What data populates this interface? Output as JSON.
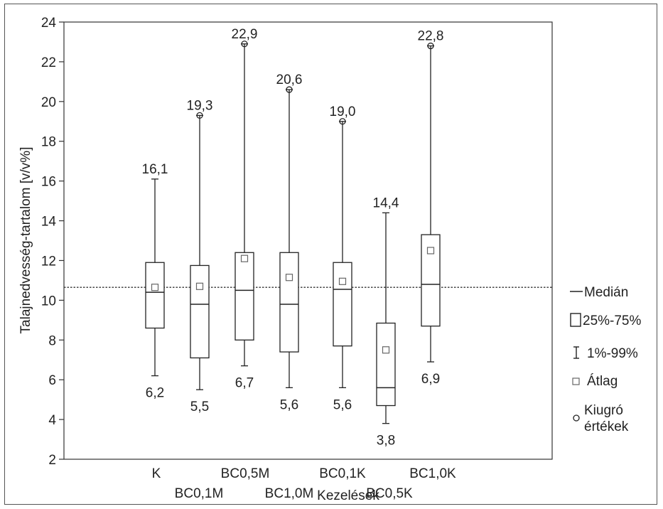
{
  "chart_data": {
    "type": "box",
    "xlabel": "Kezelések",
    "ylabel": "Talajnedvesség-tartalom [v/v%]",
    "ylim": [
      2,
      24
    ],
    "yticks": [
      2,
      4,
      6,
      8,
      10,
      12,
      14,
      16,
      18,
      20,
      22,
      24
    ],
    "reference_line": 10.65,
    "categories": [
      "K",
      "BC0,1M",
      "BC0,5M",
      "BC1,0M",
      "BC0,1K",
      "BC0,5K",
      "BC1,0K"
    ],
    "boxes": [
      {
        "category": "K",
        "whisker_low": 6.2,
        "q1": 8.6,
        "median": 10.4,
        "q3": 11.9,
        "whisker_high": 16.1,
        "mean": 10.65,
        "outliers": [],
        "low_label": "6,2",
        "high_label": "16,1"
      },
      {
        "category": "BC0,1M",
        "whisker_low": 5.5,
        "q1": 7.1,
        "median": 9.8,
        "q3": 11.75,
        "whisker_high": 19.3,
        "mean": 10.7,
        "outliers": [
          19.3
        ],
        "low_label": "5,5",
        "high_label": "19,3"
      },
      {
        "category": "BC0,5M",
        "whisker_low": 6.7,
        "q1": 8.0,
        "median": 10.5,
        "q3": 12.4,
        "whisker_high": 22.9,
        "mean": 12.1,
        "outliers": [
          22.9
        ],
        "low_label": "6,7",
        "high_label": "22,9"
      },
      {
        "category": "BC1,0M",
        "whisker_low": 5.6,
        "q1": 7.4,
        "median": 9.8,
        "q3": 12.4,
        "whisker_high": 20.6,
        "mean": 11.15,
        "outliers": [
          20.6
        ],
        "low_label": "5,6",
        "high_label": "20,6"
      },
      {
        "category": "BC0,1K",
        "whisker_low": 5.6,
        "q1": 7.7,
        "median": 10.55,
        "q3": 11.9,
        "whisker_high": 19.0,
        "mean": 10.95,
        "outliers": [
          19.0
        ],
        "low_label": "5,6",
        "high_label": "19,0"
      },
      {
        "category": "BC0,5K",
        "whisker_low": 3.8,
        "q1": 4.7,
        "median": 5.6,
        "q3": 8.85,
        "whisker_high": 14.4,
        "mean": 7.5,
        "outliers": [],
        "low_label": "3,8",
        "high_label": "14,4"
      },
      {
        "category": "BC1,0K",
        "whisker_low": 6.9,
        "q1": 8.7,
        "median": 10.8,
        "q3": 13.3,
        "whisker_high": 22.8,
        "mean": 12.5,
        "outliers": [
          22.8
        ],
        "low_label": "6,9",
        "high_label": "22,8"
      }
    ],
    "legend": {
      "position": "right",
      "median": "Medián",
      "box": "25%-75%",
      "whisker": "1%-99%",
      "mean": "Átlag",
      "outliers_line1": "Kiugró",
      "outliers_line2": "értékek"
    },
    "grid": false
  }
}
